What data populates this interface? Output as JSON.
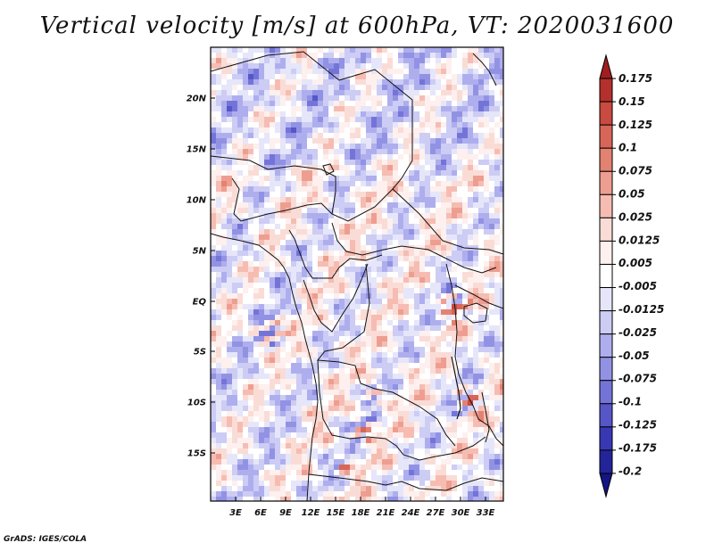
{
  "title": "Vertical velocity [m/s] at 600hPa, VT: 2020031600",
  "credit": "GrADS: IGES/COLA",
  "map": {
    "lat_labels": [
      "20N",
      "15N",
      "10N",
      "5N",
      "EQ",
      "5S",
      "10S",
      "15S"
    ],
    "lon_labels": [
      "3E",
      "6E",
      "9E",
      "12E",
      "15E",
      "18E",
      "21E",
      "24E",
      "27E",
      "30E",
      "33E"
    ]
  },
  "colorbar": {
    "labels": [
      "0.175",
      "0.15",
      "0.125",
      "0.1",
      "0.075",
      "0.05",
      "0.025",
      "0.0125",
      "0.005",
      "-0.005",
      "-0.0125",
      "-0.025",
      "-0.05",
      "-0.075",
      "-0.1",
      "-0.125",
      "-0.175",
      "-0.2"
    ],
    "colors": [
      "#a01e1e",
      "#b4302c",
      "#c84a40",
      "#d86658",
      "#e48272",
      "#ee9e90",
      "#f6bcb2",
      "#fadcd6",
      "#fdf0ee",
      "#ffffff",
      "#e6e6fa",
      "#ccccf4",
      "#aeaeee",
      "#9292e4",
      "#7474d8",
      "#5656c8",
      "#3838b4",
      "#24249a",
      "#141482"
    ]
  }
}
